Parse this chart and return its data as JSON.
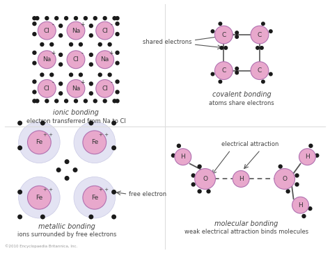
{
  "background_color": "#ffffff",
  "atom_pink": "#e8a8cc",
  "electron_color": "#1a1a1a",
  "bond_line_color": "#555555",
  "text_color": "#444444",
  "cloud_color": "#ddddf0",
  "copyright": "©2010 Encyclopaedia Britannica, Inc.",
  "sections": {
    "ionic": {
      "title": "ionic bonding",
      "subtitle": "electron transferred from Na to Cl"
    },
    "covalent": {
      "title": "covalent bonding",
      "subtitle": "atoms share electrons"
    },
    "metallic": {
      "title": "metallic bonding",
      "subtitle": "ions surrounded by free electrons"
    },
    "molecular": {
      "title": "molecular bonding",
      "subtitle": "weak electrical attraction binds molecules"
    }
  }
}
